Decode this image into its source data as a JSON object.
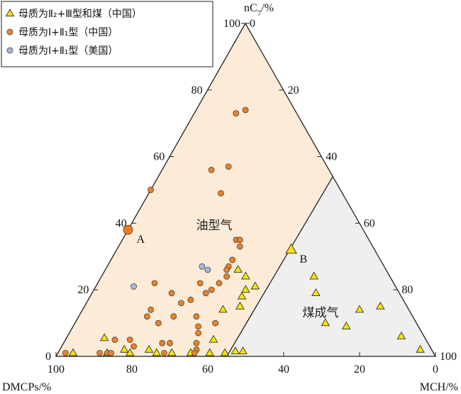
{
  "chart_data": {
    "type": "scatter",
    "subtype": "ternary",
    "title": "",
    "axes": {
      "top": {
        "label": "nC7/%",
        "label_text": "nC",
        "label_sub": "7",
        "label_suffix": "/%"
      },
      "left": {
        "label": "DMCPs/%"
      },
      "right": {
        "label": "MCH/%"
      }
    },
    "ticks": {
      "left_edge": [
        "0",
        "20",
        "40",
        "60",
        "80",
        "100"
      ],
      "right_edge": [
        "0",
        "20",
        "40",
        "60",
        "80",
        "100"
      ],
      "bottom_edge": [
        "100",
        "80",
        "60",
        "40",
        "20",
        "0"
      ]
    },
    "regions": [
      {
        "name": "油型气",
        "color": "#fcebd6"
      },
      {
        "name": "煤成气",
        "color": "#efefef"
      }
    ],
    "boundary": [
      {
        "nC7": 0,
        "MCH": 45
      },
      {
        "nC7": 54,
        "MCH": 46
      }
    ],
    "legend": [
      {
        "marker": "triangle",
        "color": "#f5e700",
        "text": "母质为Ⅱ₂+Ⅲ型和煤（中国）"
      },
      {
        "marker": "circle",
        "color": "#e8822a",
        "text": "母质为Ⅰ+Ⅱ₁型（中国）"
      },
      {
        "marker": "circle",
        "color": "#a9b8d8",
        "text": "母质为Ⅰ+Ⅱ₁型（美国）"
      }
    ],
    "special_points": [
      {
        "label": "A",
        "nC7": 38,
        "MCH": 0,
        "marker": "circle",
        "color": "#f5781e"
      },
      {
        "label": "B",
        "nC7": 32,
        "MCH": 46,
        "marker": "triangle",
        "color": "#f5e700"
      }
    ],
    "series": [
      {
        "marker": "triangle",
        "color": "#f5e700",
        "points": [
          [
            1.5,
            48.5
          ],
          [
            1.5,
            46.5
          ],
          [
            1,
            44
          ],
          [
            1,
            40
          ],
          [
            5,
            39
          ],
          [
            1,
            35
          ],
          [
            1,
            30
          ],
          [
            1,
            26
          ],
          [
            2,
            23.5
          ],
          [
            1,
            19
          ],
          [
            2,
            17
          ],
          [
            1,
            13
          ],
          [
            5.5,
            10
          ],
          [
            1,
            4
          ],
          [
            26,
            35
          ],
          [
            24,
            38
          ],
          [
            20,
            40
          ],
          [
            21,
            42
          ],
          [
            18,
            40
          ],
          [
            14,
            37
          ],
          [
            15,
            41
          ],
          [
            24,
            56
          ],
          [
            19,
            59
          ],
          [
            10,
            66
          ],
          [
            9,
            72
          ],
          [
            14,
            73
          ],
          [
            15,
            78
          ],
          [
            6,
            88
          ],
          [
            2,
            95
          ]
        ]
      },
      {
        "marker": "circle",
        "color": "#e8822a",
        "points": [
          [
            73,
            11
          ],
          [
            74,
            13
          ],
          [
            56,
            13
          ],
          [
            57,
            17
          ],
          [
            49,
            19
          ],
          [
            35,
            30
          ],
          [
            33,
            32
          ],
          [
            29,
            32
          ],
          [
            27,
            32
          ],
          [
            26,
            32
          ],
          [
            24,
            33
          ],
          [
            22,
            32
          ],
          [
            20,
            31
          ],
          [
            22,
            27
          ],
          [
            17,
            27
          ],
          [
            22,
            15
          ],
          [
            14,
            18
          ],
          [
            12,
            18
          ],
          [
            19,
            21
          ],
          [
            16,
            25
          ],
          [
            12,
            25
          ],
          [
            19,
            30
          ],
          [
            10,
            22
          ],
          [
            9,
            33
          ],
          [
            7,
            34
          ],
          [
            2,
            36
          ],
          [
            1,
            36
          ],
          [
            4,
            26
          ],
          [
            1,
            28
          ],
          [
            50,
            0
          ],
          [
            1,
            11
          ],
          [
            1,
            13
          ],
          [
            1,
            14
          ],
          [
            5,
            13
          ],
          [
            5,
            17
          ],
          [
            3,
            19
          ],
          [
            1,
            2
          ],
          [
            4,
            28
          ],
          [
            4,
            35
          ],
          [
            10,
            37
          ],
          [
            12,
            31
          ],
          [
            35,
            31
          ]
        ]
      },
      {
        "marker": "circle",
        "color": "#a9b8d8",
        "points": [
          [
            21,
            10
          ],
          [
            27,
            25
          ],
          [
            26,
            27
          ]
        ]
      }
    ]
  }
}
